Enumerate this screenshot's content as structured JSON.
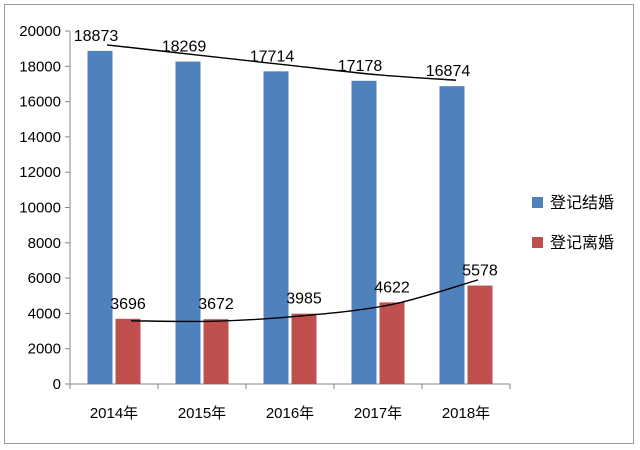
{
  "chart_data": {
    "type": "bar",
    "categories": [
      "2014年",
      "2015年",
      "2016年",
      "2017年",
      "2018年"
    ],
    "series": [
      {
        "name": "登记结婚",
        "values": [
          18873,
          18269,
          17714,
          17178,
          16874
        ],
        "color": "#4F81BD"
      },
      {
        "name": "登记离婚",
        "values": [
          3696,
          3672,
          3985,
          4622,
          5578
        ],
        "color": "#C0504D"
      }
    ],
    "ylim": [
      0,
      20000
    ],
    "yticks": [
      0,
      2000,
      4000,
      6000,
      8000,
      10000,
      12000,
      14000,
      16000,
      18000,
      20000
    ],
    "data_labels": true,
    "trendlines": true,
    "legend_position": "right",
    "grid": false
  }
}
